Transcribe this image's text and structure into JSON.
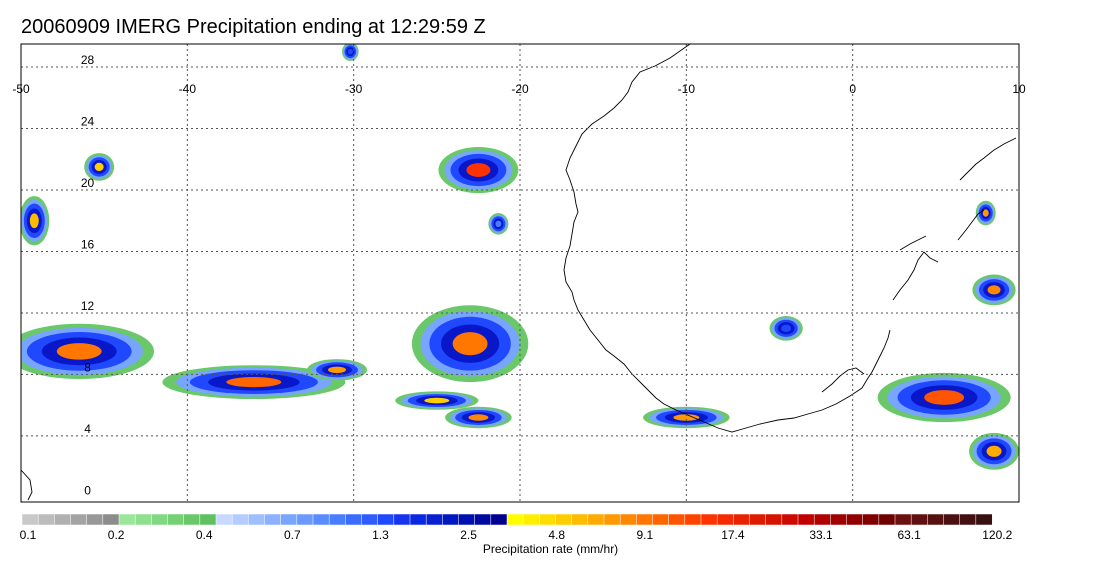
{
  "title": "20060909 IMERG Precipitation ending at 12:29:59 Z",
  "map": {
    "lon_range": [
      -50,
      10
    ],
    "lat_range": [
      -0.3,
      29.5
    ],
    "x_tick_labels": [
      "-50",
      "-40",
      "-30",
      "-20",
      "-10",
      "0",
      "10"
    ],
    "y_tick_labels": [
      "0",
      "4",
      "8",
      "12",
      "16",
      "20",
      "24",
      "28"
    ],
    "grid": "dotted",
    "colors": {
      "frame": "#000000",
      "gridline": "#555555",
      "coastline": "#000000"
    }
  },
  "colorbar": {
    "caption": "Precipitation rate (mm/hr)",
    "tick_labels": [
      "0.1",
      "0.2",
      "0.4",
      "0.7",
      "1.3",
      "2.5",
      "4.8",
      "9.1",
      "17.4",
      "33.1",
      "63.1",
      "120.2"
    ],
    "colors": [
      "#c8c8c8",
      "#bcbcbc",
      "#b0b0b0",
      "#a4a4a4",
      "#989898",
      "#8c8c8c",
      "#9ae69a",
      "#8ee08e",
      "#82d882",
      "#76d076",
      "#6ac86a",
      "#5ec05e",
      "#c8d8ff",
      "#b4ccff",
      "#a0bfff",
      "#8cb2ff",
      "#78a5ff",
      "#6a9aff",
      "#5a8cff",
      "#4a7cff",
      "#3c6cff",
      "#2e5cff",
      "#2048ff",
      "#1434f0",
      "#0a28e0",
      "#0820d0",
      "#0018c0",
      "#0010b0",
      "#0008a0",
      "#000090",
      "#ffff00",
      "#ffee00",
      "#ffdd00",
      "#ffcc00",
      "#ffbb00",
      "#ffaa00",
      "#ff9900",
      "#ff8800",
      "#ff7700",
      "#ff6600",
      "#ff5500",
      "#ff4400",
      "#ff3300",
      "#f52a00",
      "#eb2200",
      "#e01a00",
      "#d61200",
      "#cc0a00",
      "#c00000",
      "#b00000",
      "#a00000",
      "#900000",
      "#800000",
      "#700000",
      "#6a1010",
      "#601010",
      "#561010",
      "#4c1010",
      "#421010",
      "#381010"
    ]
  },
  "precip_cells": [
    {
      "lon": -46.5,
      "lat": 9.5,
      "lon_r": 4.5,
      "lat_r": 1.8,
      "peak": "#ff7700"
    },
    {
      "lon": -49.2,
      "lat": 18.0,
      "lon_r": 0.9,
      "lat_r": 1.6,
      "peak": "#ffbb00"
    },
    {
      "lon": -45.3,
      "lat": 21.5,
      "lon_r": 0.9,
      "lat_r": 0.9,
      "peak": "#ffcc00"
    },
    {
      "lon": -36.0,
      "lat": 7.5,
      "lon_r": 5.5,
      "lat_r": 1.1,
      "peak": "#ff6600"
    },
    {
      "lon": -31.0,
      "lat": 8.3,
      "lon_r": 1.8,
      "lat_r": 0.7,
      "peak": "#ff9900"
    },
    {
      "lon": -30.2,
      "lat": 29.0,
      "lon_r": 0.5,
      "lat_r": 0.6,
      "peak": "#2048ff"
    },
    {
      "lon": -22.5,
      "lat": 21.3,
      "lon_r": 2.4,
      "lat_r": 1.5,
      "peak": "#ff3300"
    },
    {
      "lon": -21.3,
      "lat": 17.8,
      "lon_r": 0.6,
      "lat_r": 0.7,
      "peak": "#4a7cff"
    },
    {
      "lon": -23.0,
      "lat": 10.0,
      "lon_r": 3.5,
      "lat_r": 2.5,
      "peak": "#ff7700"
    },
    {
      "lon": -25.0,
      "lat": 6.3,
      "lon_r": 2.5,
      "lat_r": 0.6,
      "peak": "#ffcc00"
    },
    {
      "lon": -22.5,
      "lat": 5.2,
      "lon_r": 2.0,
      "lat_r": 0.7,
      "peak": "#ff8800"
    },
    {
      "lon": -10.0,
      "lat": 5.2,
      "lon_r": 2.6,
      "lat_r": 0.7,
      "peak": "#ff9900"
    },
    {
      "lon": -4.0,
      "lat": 11.0,
      "lon_r": 1.0,
      "lat_r": 0.8,
      "peak": "#2048ff"
    },
    {
      "lon": 8.5,
      "lat": 13.5,
      "lon_r": 1.3,
      "lat_r": 1.0,
      "peak": "#ff8800"
    },
    {
      "lon": 5.5,
      "lat": 6.5,
      "lon_r": 4.0,
      "lat_r": 1.6,
      "peak": "#ff5500"
    },
    {
      "lon": 8.5,
      "lat": 3.0,
      "lon_r": 1.5,
      "lat_r": 1.2,
      "peak": "#ffaa00"
    },
    {
      "lon": 8.0,
      "lat": 18.5,
      "lon_r": 0.6,
      "lat_r": 0.8,
      "peak": "#ff9900"
    }
  ]
}
